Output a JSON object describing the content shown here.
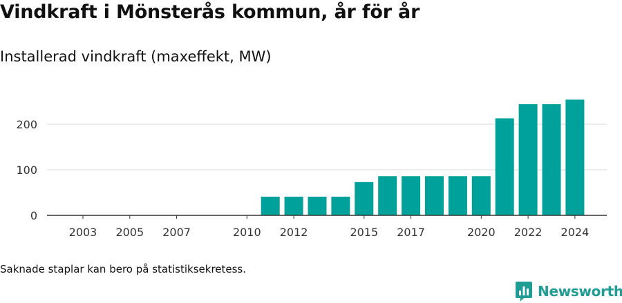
{
  "title": "Vindkraft i Mönsterås kommun, år för år",
  "subtitle": "Installerad vindkraft (maxeffekt, MW)",
  "footnote": "Saknade staplar kan bero på statistiksekretess.",
  "brand": {
    "name": "Newsworthy",
    "logo_icon": "newsworthy-chart-icon",
    "color": "#1f9c94"
  },
  "chart_data": {
    "type": "bar",
    "categories": [
      "2003",
      "2004",
      "2005",
      "2006",
      "2007",
      "2008",
      "2009",
      "2010",
      "2011",
      "2012",
      "2013",
      "2014",
      "2015",
      "2016",
      "2017",
      "2018",
      "2019",
      "2020",
      "2021",
      "2022",
      "2023",
      "2024"
    ],
    "values": [
      0,
      0,
      0,
      0,
      0,
      0,
      0,
      0,
      41,
      41,
      41,
      41,
      73,
      86,
      86,
      86,
      86,
      86,
      213,
      244,
      244,
      254
    ],
    "x_tick_labels": [
      "2003",
      "2005",
      "2007",
      "2010",
      "2012",
      "2015",
      "2017",
      "2020",
      "2022",
      "2024"
    ],
    "y_ticks": [
      0,
      100,
      200
    ],
    "ylim": [
      0,
      275
    ],
    "bar_color": "#00a19a",
    "grid": true
  }
}
